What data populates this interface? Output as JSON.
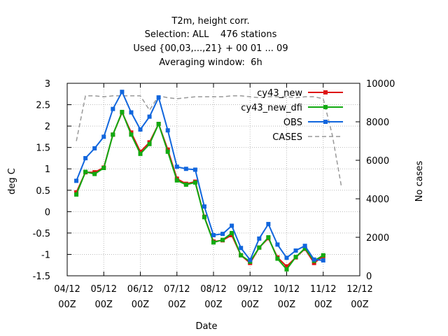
{
  "chart_data": {
    "type": "line",
    "title_lines": [
      "T2m, height corr.",
      "Selection: ALL    476 stations",
      "Used {00,03,...,21} + 00 01 ... 09",
      "Averaging window:  6h"
    ],
    "xlabel": "Date",
    "ylabel": "deg C",
    "y2label": "No cases",
    "ylim": [
      -1.5,
      3
    ],
    "y2lim": [
      0,
      10000
    ],
    "yticks": [
      {
        "v": 3,
        "label": "3"
      },
      {
        "v": 2.5,
        "label": "2.5"
      },
      {
        "v": 2,
        "label": "2"
      },
      {
        "v": 1.5,
        "label": "1.5"
      },
      {
        "v": 1,
        "label": "1"
      },
      {
        "v": 0.5,
        "label": "0.5"
      },
      {
        "v": 0,
        "label": "0"
      },
      {
        "v": -0.5,
        "label": "-0.5"
      },
      {
        "v": -1,
        "label": "-1"
      },
      {
        "v": -1.5,
        "label": "-1.5"
      }
    ],
    "y2ticks": [
      {
        "v": 10000,
        "label": "10000"
      },
      {
        "v": 8000,
        "label": "8000"
      },
      {
        "v": 6000,
        "label": "6000"
      },
      {
        "v": 4000,
        "label": "4000"
      },
      {
        "v": 2000,
        "label": "2000"
      },
      {
        "v": 0,
        "label": "0"
      }
    ],
    "xlim": [
      "04/12 00Z",
      "12/12 00Z"
    ],
    "xticks": [
      {
        "day": 4,
        "line1": "04/12",
        "line2": "00Z"
      },
      {
        "day": 5,
        "line1": "05/12",
        "line2": "00Z"
      },
      {
        "day": 6,
        "line1": "06/12",
        "line2": "00Z"
      },
      {
        "day": 7,
        "line1": "07/12",
        "line2": "00Z"
      },
      {
        "day": 8,
        "line1": "08/12",
        "line2": "00Z"
      },
      {
        "day": 9,
        "line1": "09/12",
        "line2": "00Z"
      },
      {
        "day": 10,
        "line1": "10/12",
        "line2": "00Z"
      },
      {
        "day": 11,
        "line1": "11/12",
        "line2": "00Z"
      },
      {
        "day": 12,
        "line1": "12/12",
        "line2": "00Z"
      }
    ],
    "grid": true,
    "legend_position": "top-right",
    "x": [
      "04/12 06Z",
      "04/12 12Z",
      "04/12 18Z",
      "05/12 00Z",
      "05/12 06Z",
      "05/12 12Z",
      "05/12 18Z",
      "06/12 00Z",
      "06/12 06Z",
      "06/12 12Z",
      "06/12 18Z",
      "07/12 00Z",
      "07/12 06Z",
      "07/12 12Z",
      "07/12 18Z",
      "08/12 00Z",
      "08/12 06Z",
      "08/12 12Z",
      "08/12 18Z",
      "09/12 00Z",
      "09/12 06Z",
      "09/12 12Z",
      "09/12 18Z",
      "10/12 00Z",
      "10/12 06Z",
      "10/12 12Z",
      "10/12 18Z",
      "11/12 00Z",
      "11/12 06Z"
    ],
    "series": [
      {
        "name": "cy43_new",
        "color": "#dd1111",
        "axis": "left",
        "values": [
          0.45,
          0.92,
          0.92,
          1.03,
          1.8,
          2.32,
          1.85,
          1.4,
          1.62,
          2.05,
          1.45,
          0.77,
          0.65,
          0.7,
          -0.12,
          -0.7,
          -0.67,
          -0.55,
          -1.02,
          -1.2,
          -0.84,
          -0.62,
          -1.07,
          -1.28,
          -1.07,
          -0.87,
          -1.2,
          -1.04,
          null
        ]
      },
      {
        "name": "cy43_new_dfi",
        "color": "#11aa11",
        "axis": "left",
        "values": [
          0.4,
          0.93,
          0.88,
          1.02,
          1.8,
          2.33,
          1.8,
          1.35,
          1.58,
          2.05,
          1.4,
          0.73,
          0.63,
          0.68,
          -0.13,
          -0.72,
          -0.66,
          -0.5,
          -1.02,
          -1.17,
          -0.84,
          -0.6,
          -1.1,
          -1.35,
          -1.06,
          -0.86,
          -1.15,
          -1.02,
          null
        ]
      },
      {
        "name": "OBS",
        "color": "#1166dd",
        "axis": "left",
        "values": [
          0.72,
          1.25,
          1.48,
          1.75,
          2.4,
          2.8,
          2.32,
          1.92,
          2.22,
          2.67,
          1.9,
          1.05,
          1.0,
          0.98,
          0.12,
          -0.55,
          -0.52,
          -0.33,
          -0.85,
          -1.13,
          -0.63,
          -0.29,
          -0.77,
          -1.08,
          -0.91,
          -0.8,
          -1.12,
          -1.14,
          null
        ]
      },
      {
        "name": "CASES",
        "color": "#999999",
        "axis": "right",
        "dashed": true,
        "x": [
          "04/12 06Z",
          "04/12 12Z",
          "04/12 18Z",
          "05/12 00Z",
          "05/12 06Z",
          "05/12 12Z",
          "05/12 18Z",
          "06/12 00Z",
          "06/12 06Z",
          "06/12 12Z",
          "06/12 18Z",
          "07/12 00Z",
          "07/12 06Z",
          "07/12 12Z",
          "07/12 18Z",
          "08/12 00Z",
          "08/12 06Z",
          "08/12 12Z",
          "08/12 18Z",
          "09/12 00Z",
          "09/12 06Z",
          "09/12 12Z",
          "09/12 18Z",
          "10/12 00Z",
          "10/12 06Z",
          "10/12 12Z",
          "10/12 18Z",
          "11/12 00Z",
          "11/12 06Z",
          "11/12 12Z"
        ],
        "values": [
          7000,
          9350,
          9350,
          9300,
          9350,
          9350,
          9350,
          9350,
          8600,
          9350,
          9250,
          9200,
          9250,
          9300,
          9300,
          9300,
          9300,
          9350,
          9350,
          9300,
          9250,
          9300,
          9300,
          9300,
          9250,
          9300,
          9300,
          9200,
          7300,
          4600
        ]
      }
    ]
  }
}
